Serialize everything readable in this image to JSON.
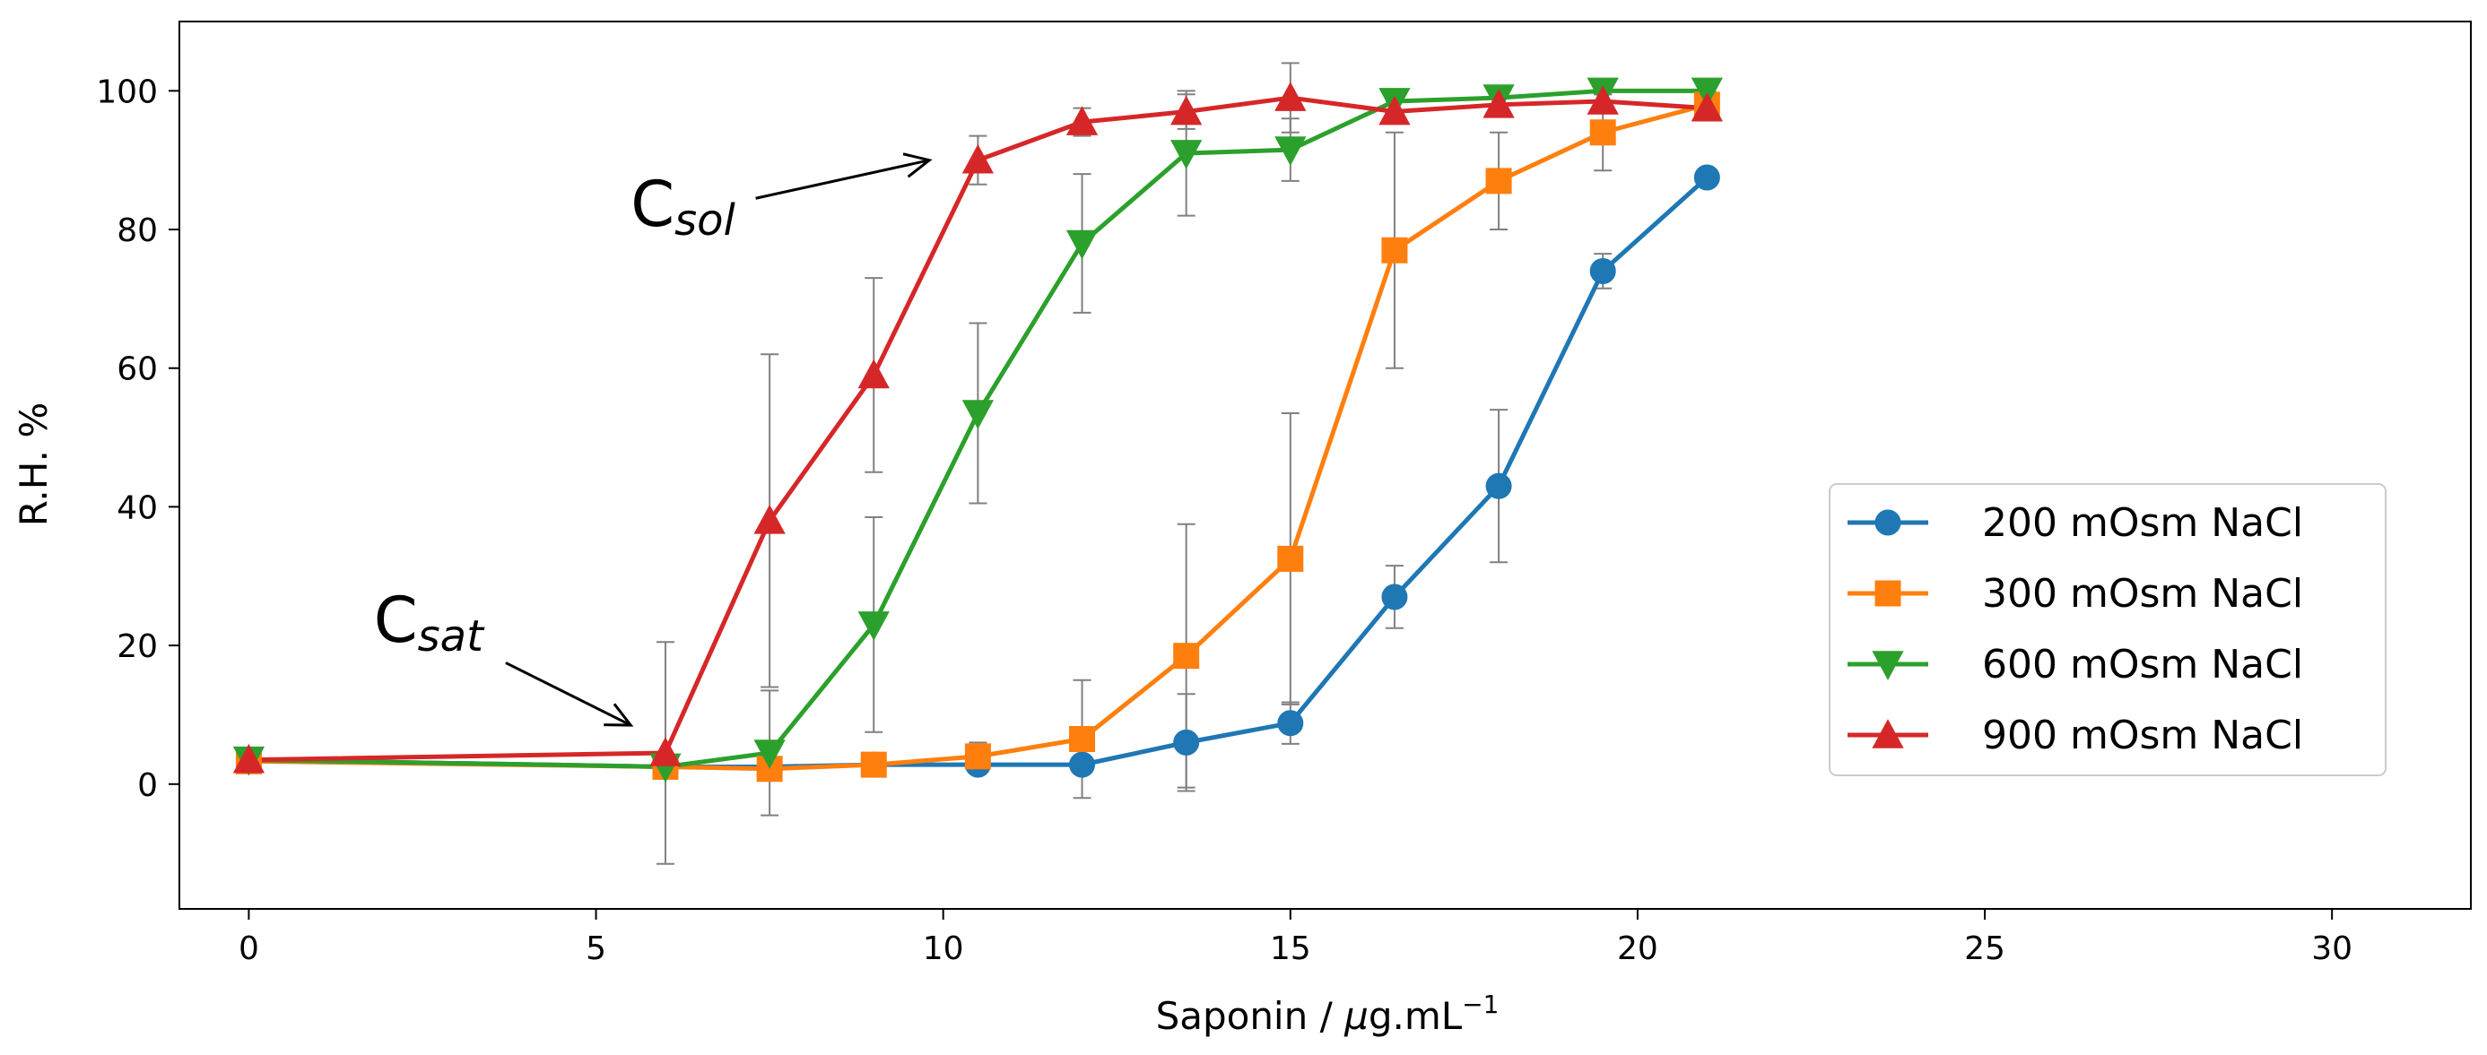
{
  "chart_data": {
    "type": "line",
    "title": "",
    "xlabel_main": "Saponin / ",
    "xlabel_mu": "μ",
    "xlabel_unit": "g.mL",
    "xlabel_sup": "−1",
    "ylabel": "R.H. %",
    "xlim": [
      -1,
      32
    ],
    "ylim": [
      -18,
      110
    ],
    "xticks": [
      0,
      5,
      10,
      15,
      20,
      25,
      30
    ],
    "yticks": [
      0,
      20,
      40,
      60,
      80,
      100
    ],
    "grid": false,
    "legend_position": "center-right",
    "series": [
      {
        "name": "200 mOsm NaCl",
        "color": "#1f77b4",
        "marker": "circle",
        "x": [
          0,
          6,
          7.5,
          9,
          10.5,
          12,
          13.5,
          15,
          16.5,
          18,
          19.5,
          21
        ],
        "y": [
          3.5,
          2.5,
          2.5,
          2.8,
          2.8,
          2.8,
          6,
          8.8,
          27,
          43,
          74,
          87.5
        ],
        "err": [
          1,
          1,
          1,
          1,
          0.8,
          0,
          7,
          3,
          4.5,
          11,
          2.5,
          1
        ]
      },
      {
        "name": "300 mOsm NaCl",
        "color": "#ff7f0e",
        "marker": "square",
        "x": [
          0,
          6,
          7.5,
          9,
          10.5,
          12,
          13.5,
          15,
          16.5,
          18,
          19.5,
          21
        ],
        "y": [
          3.3,
          2.5,
          2.2,
          2.8,
          4,
          6.5,
          18.5,
          32.5,
          77,
          87,
          94,
          98
        ],
        "err": [
          0.8,
          1,
          1,
          1,
          2,
          8.5,
          19,
          21,
          17,
          7,
          5.5,
          2
        ]
      },
      {
        "name": "600 mOsm NaCl",
        "color": "#2ca02c",
        "marker": "triangle-down",
        "x": [
          0,
          6,
          7.5,
          9,
          10.5,
          12,
          13.5,
          15,
          16.5,
          18,
          19.5,
          21
        ],
        "y": [
          3.5,
          2.5,
          4.5,
          23,
          53.5,
          78,
          91,
          91.5,
          98.5,
          99,
          100,
          100
        ],
        "err": [
          1,
          1,
          9,
          15.5,
          13,
          10,
          9,
          4.5,
          1.5,
          1,
          0.5,
          0.5
        ]
      },
      {
        "name": "900 mOsm NaCl",
        "color": "#d62728",
        "marker": "triangle-up",
        "x": [
          0,
          6,
          7.5,
          9,
          10.5,
          12,
          13.5,
          15,
          16.5,
          18,
          19.5,
          21
        ],
        "y": [
          3.5,
          4.5,
          38,
          59,
          90,
          95.5,
          97,
          99,
          97,
          98,
          98.5,
          97.5
        ],
        "err": [
          1,
          16,
          24,
          14,
          3.5,
          2,
          2.5,
          5,
          1.5,
          1,
          1,
          1
        ]
      }
    ],
    "annotations": [
      {
        "label_main": "C",
        "label_sub": "sol",
        "xytext": [
          5.5,
          80.5
        ],
        "xy": [
          9.8,
          90
        ],
        "tail": [
          7.3,
          84.5
        ]
      },
      {
        "label_main": "C",
        "label_sub": "sat",
        "xytext": [
          1.8,
          20.5
        ],
        "xy": [
          5.5,
          8.5
        ],
        "tail": [
          3.7,
          17.5
        ]
      }
    ]
  }
}
